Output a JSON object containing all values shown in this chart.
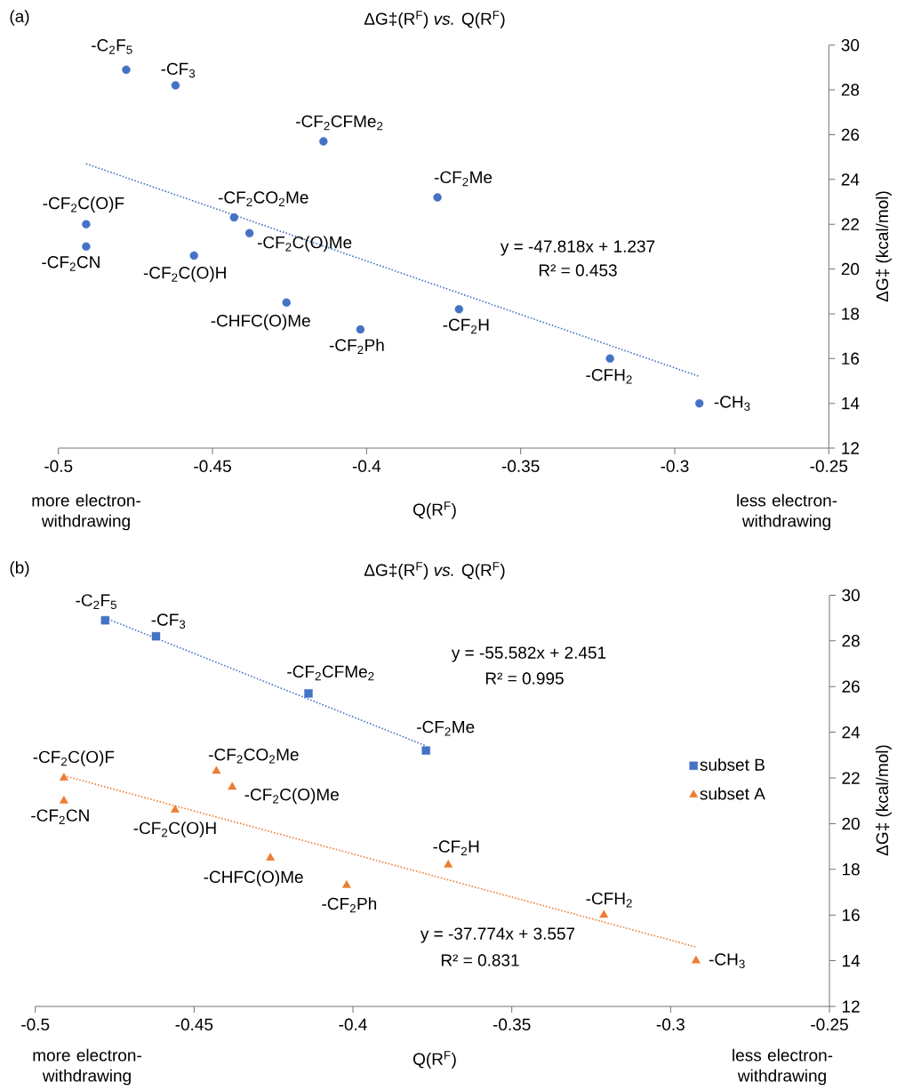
{
  "chart_data": [
    {
      "type": "scatter",
      "title": "ΔG‡(R$^{F}$) *vs.* Q(R$^{F}$)",
      "xlabel": "Q(R$^{F}$)",
      "ylabel": "ΔG‡ (kcal/mol)",
      "xlim": [
        -0.5,
        -0.25
      ],
      "xticks": [
        -0.5,
        -0.45,
        -0.4,
        -0.35,
        -0.3,
        -0.25
      ],
      "ylim": [
        12,
        30
      ],
      "yticks": [
        12,
        14,
        16,
        18,
        20,
        22,
        24,
        26,
        28,
        30
      ],
      "marker": "circle",
      "series": [
        {
          "color": "#4472c4",
          "x": [
            -0.478,
            -0.462,
            -0.414,
            -0.377,
            -0.491,
            -0.491,
            -0.443,
            -0.438,
            -0.456,
            -0.426,
            -0.402,
            -0.37,
            -0.321,
            -0.292
          ],
          "values": [
            28.9,
            28.2,
            25.7,
            23.2,
            22.0,
            21.0,
            22.3,
            21.6,
            20.6,
            18.5,
            17.3,
            18.2,
            16.0,
            14.0
          ]
        },
        {
          "type": "line",
          "marker": "none",
          "line_style": "dotted",
          "color": "#4472c4",
          "x": [
            -0.491,
            -0.292
          ],
          "values": [
            24.7,
            15.2
          ]
        }
      ],
      "annotations": [
        "(a)",
        {
          "text": "-C$_{2}$F$_{5}$",
          "x": -0.478,
          "y": 28.9
        },
        {
          "text": "-CF$_{3}$",
          "x": -0.462,
          "y": 28.2
        },
        {
          "text": "-CF$_{2}$CFMe$_{2}$",
          "x": -0.414,
          "y": 25.7
        },
        {
          "text": "-CF$_{2}$Me",
          "x": -0.377,
          "y": 23.2
        },
        {
          "text": "-CF$_{2}$C(O)F",
          "x": -0.491,
          "y": 22.0
        },
        {
          "text": "-CF$_{2}$CN",
          "x": -0.491,
          "y": 21.0
        },
        {
          "text": "-CF$_{2}$CO$_{2}$Me",
          "x": -0.443,
          "y": 22.3
        },
        {
          "text": "-CF$_{2}$C(O)Me",
          "x": -0.438,
          "y": 21.6
        },
        {
          "text": "-CF$_{2}$C(O)H",
          "x": -0.456,
          "y": 20.6
        },
        {
          "text": "-CHFC(O)Me",
          "x": -0.426,
          "y": 18.5
        },
        {
          "text": "-CF$_{2}$Ph",
          "x": -0.402,
          "y": 17.3
        },
        {
          "text": "-CF$_{2}$H",
          "x": -0.37,
          "y": 18.2
        },
        {
          "text": "-CFH$_{2}$",
          "x": -0.321,
          "y": 16.0
        },
        {
          "text": "-CH$_{3}$",
          "x": -0.292,
          "y": 14.0
        },
        "y = -47.818x + 1.237",
        "R² = 0.453",
        "more electron-withdrawing",
        "less electron-withdrawing"
      ]
    },
    {
      "type": "scatter",
      "title": "ΔG‡(R$^{F}$) *vs.* Q(R$^{F}$)",
      "xlabel": "Q(R$^{F}$)",
      "ylabel": "ΔG‡ (kcal/mol)",
      "xlim": [
        -0.5,
        -0.25
      ],
      "xticks": [
        -0.5,
        -0.45,
        -0.4,
        -0.35,
        -0.3,
        -0.25
      ],
      "ylim": [
        12,
        30
      ],
      "yticks": [
        12,
        14,
        16,
        18,
        20,
        22,
        24,
        26,
        28,
        30
      ],
      "legend": "right",
      "series": [
        {
          "name": "subset B",
          "marker": "square",
          "color": "#4472c4",
          "x": [
            -0.478,
            -0.462,
            -0.414,
            -0.377
          ],
          "values": [
            28.9,
            28.2,
            25.7,
            23.2
          ]
        },
        {
          "name": "subset A",
          "marker": "triangle",
          "color": "#ed7d31",
          "x": [
            -0.491,
            -0.491,
            -0.443,
            -0.438,
            -0.456,
            -0.426,
            -0.402,
            -0.37,
            -0.321,
            -0.292
          ],
          "values": [
            22.0,
            21.0,
            22.3,
            21.6,
            20.6,
            18.5,
            17.3,
            18.2,
            16.0,
            14.0
          ]
        },
        {
          "type": "line",
          "marker": "none",
          "line_style": "dotted",
          "color": "#4472c4",
          "x": [
            -0.478,
            -0.377
          ],
          "values": [
            29.0,
            23.4
          ]
        },
        {
          "type": "line",
          "marker": "none",
          "line_style": "dotted",
          "color": "#ed7d31",
          "x": [
            -0.491,
            -0.292
          ],
          "values": [
            22.1,
            14.6
          ]
        }
      ],
      "annotations": [
        "(b)",
        {
          "text": "-C$_{2}$F$_{5}$",
          "x": -0.478,
          "y": 28.9
        },
        {
          "text": "-CF$_{3}$",
          "x": -0.462,
          "y": 28.2
        },
        {
          "text": "-CF$_{2}$CFMe$_{2}$",
          "x": -0.414,
          "y": 25.7
        },
        {
          "text": "-CF$_{2}$Me",
          "x": -0.377,
          "y": 23.2
        },
        {
          "text": "-CF$_{2}$C(O)F",
          "x": -0.491,
          "y": 22.0
        },
        {
          "text": "-CF$_{2}$CN",
          "x": -0.491,
          "y": 21.0
        },
        {
          "text": "-CF$_{2}$CO$_{2}$Me",
          "x": -0.443,
          "y": 22.3
        },
        {
          "text": "-CF$_{2}$C(O)Me",
          "x": -0.438,
          "y": 21.6
        },
        {
          "text": "-CF$_{2}$C(O)H",
          "x": -0.456,
          "y": 20.6
        },
        {
          "text": "-CHFC(O)Me",
          "x": -0.426,
          "y": 18.5
        },
        {
          "text": "-CF$_{2}$Ph",
          "x": -0.402,
          "y": 17.3
        },
        {
          "text": "-CF$_{2}$H",
          "x": -0.37,
          "y": 18.2
        },
        {
          "text": "-CFH$_{2}$",
          "x": -0.321,
          "y": 16.0
        },
        {
          "text": "-CH$_{3}$",
          "x": -0.292,
          "y": 14.0
        },
        "y = -55.582x + 2.451",
        "R² = 0.995",
        "y = -37.774x + 3.557",
        "R² = 0.831",
        "more electron-withdrawing",
        "less electron-withdrawing"
      ]
    }
  ]
}
